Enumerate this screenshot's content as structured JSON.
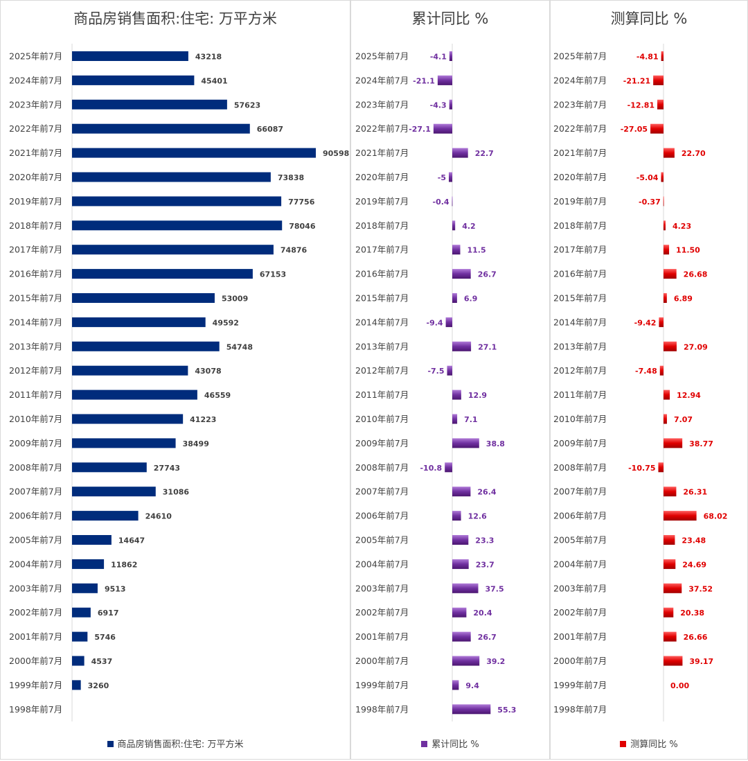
{
  "categories": [
    "2025年前7月",
    "2024年前7月",
    "2023年前7月",
    "2022年前7月",
    "2021年前7月",
    "2020年前7月",
    "2019年前7月",
    "2018年前7月",
    "2017年前7月",
    "2016年前7月",
    "2015年前7月",
    "2014年前7月",
    "2013年前7月",
    "2012年前7月",
    "2011年前7月",
    "2010年前7月",
    "2009年前7月",
    "2008年前7月",
    "2007年前7月",
    "2006年前7月",
    "2005年前7月",
    "2004年前7月",
    "2003年前7月",
    "2002年前7月",
    "2001年前7月",
    "2000年前7月",
    "1999年前7月",
    "1998年前7月"
  ],
  "chart_data": [
    {
      "type": "bar",
      "title": "商品房销售面积:住宅: 万平方米",
      "series": [
        {
          "name": "商品房销售面积:住宅: 万平方米",
          "color": "#002c7c",
          "values": [
            43218,
            45401,
            57623,
            66087,
            90598,
            73838,
            77756,
            78046,
            74876,
            67153,
            53009,
            49592,
            54748,
            43078,
            46559,
            41223,
            38499,
            27743,
            31086,
            24610,
            14647,
            11862,
            9513,
            6917,
            5746,
            4537,
            3260,
            null
          ],
          "labels": [
            "43218",
            "45401",
            "57623",
            "66087",
            "90598",
            "73838",
            "77756",
            "78046",
            "74876",
            "67153",
            "53009",
            "49592",
            "54748",
            "43078",
            "46559",
            "41223",
            "38499",
            "27743",
            "31086",
            "24610",
            "14647",
            "11862",
            "9513",
            "6917",
            "5746",
            "4537",
            "3260",
            ""
          ]
        }
      ],
      "legend": "bottom"
    },
    {
      "type": "bar",
      "title": "累计同比 %",
      "series": [
        {
          "name": "累计同比 %",
          "color": "#7030a0",
          "values": [
            -4.1,
            -21.1,
            -4.3,
            -27.1,
            22.7,
            -5,
            -0.4,
            4.2,
            11.5,
            26.7,
            6.9,
            -9.4,
            27.1,
            -7.5,
            12.9,
            7.1,
            38.8,
            -10.8,
            26.4,
            12.6,
            23.3,
            23.7,
            37.5,
            20.4,
            26.7,
            39.2,
            9.4,
            55.3
          ],
          "labels": [
            "-4.1",
            "-21.1",
            "-4.3",
            "-27.1",
            "22.7",
            "-5",
            "-0.4",
            "4.2",
            "11.5",
            "26.7",
            "6.9",
            "-9.4",
            "27.1",
            "-7.5",
            "12.9",
            "7.1",
            "38.8",
            "-10.8",
            "26.4",
            "12.6",
            "23.3",
            "23.7",
            "37.5",
            "20.4",
            "26.7",
            "39.2",
            "9.4",
            "55.3"
          ]
        }
      ],
      "legend": "bottom"
    },
    {
      "type": "bar",
      "title": "测算同比 %",
      "series": [
        {
          "name": "测算同比 %",
          "color": "#e00000",
          "values": [
            -4.81,
            -21.21,
            -12.81,
            -27.05,
            22.7,
            -5.04,
            -0.37,
            4.23,
            11.5,
            26.68,
            6.89,
            -9.42,
            27.09,
            -7.48,
            12.94,
            7.07,
            38.77,
            -10.75,
            26.31,
            68.02,
            23.48,
            24.69,
            37.52,
            20.38,
            26.66,
            39.17,
            0.0,
            null
          ],
          "labels": [
            "-4.81",
            "-21.21",
            "-12.81",
            "-27.05",
            "22.70",
            "-5.04",
            "-0.37",
            "4.23",
            "11.50",
            "26.68",
            "6.89",
            "-9.42",
            "27.09",
            "-7.48",
            "12.94",
            "7.07",
            "38.77",
            "-10.75",
            "26.31",
            "68.02",
            "23.48",
            "24.69",
            "37.52",
            "20.38",
            "26.66",
            "39.17",
            "0.00",
            ""
          ]
        }
      ],
      "legend": "bottom"
    }
  ]
}
